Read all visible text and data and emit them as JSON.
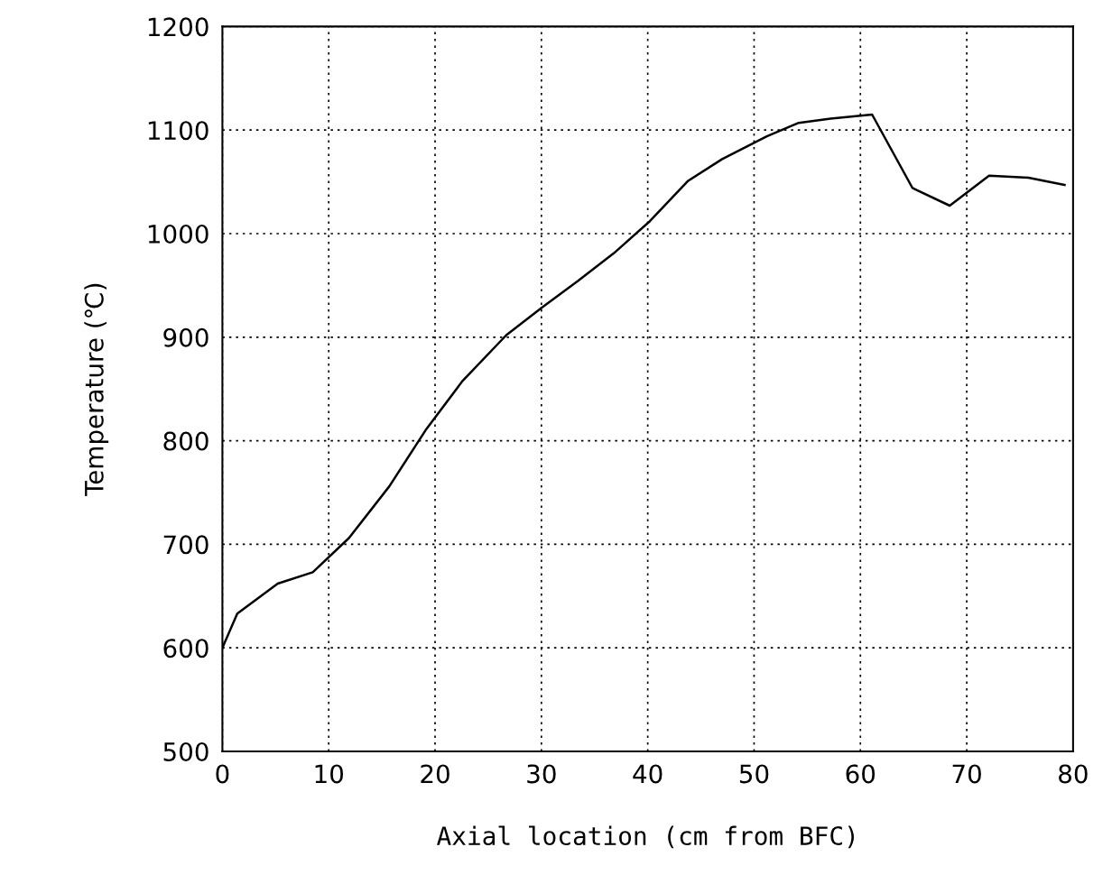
{
  "chart_data": {
    "type": "line",
    "xlabel": "Axial location (cm from BFC)",
    "ylabel": "Temperature (℃)",
    "x": [
      0,
      1.4,
      5.2,
      8.5,
      11.9,
      15.7,
      19.1,
      22.6,
      26.7,
      30.1,
      33.4,
      36.8,
      40.2,
      43.8,
      47,
      51.2,
      54.2,
      57.2,
      61.1,
      64.9,
      68.4,
      72.1,
      75.8,
      79.2
    ],
    "series": [
      {
        "color": "#000000",
        "values": [
          600,
          633,
          662,
          673,
          706,
          756,
          810,
          858,
          902,
          929,
          954,
          981,
          1012,
          1051,
          1072,
          1094,
          1107,
          1111,
          1115,
          1044,
          1027,
          1056,
          1054,
          1047
        ]
      }
    ],
    "xlim": [
      0,
      80
    ],
    "xticks": [
      0,
      10,
      20,
      30,
      40,
      50,
      60,
      70,
      80
    ],
    "ylim": [
      500,
      1200
    ],
    "yticks": [
      500,
      600,
      700,
      800,
      900,
      1000,
      1100,
      1200
    ],
    "grid": true,
    "line_style": "solid",
    "marker": "none"
  }
}
